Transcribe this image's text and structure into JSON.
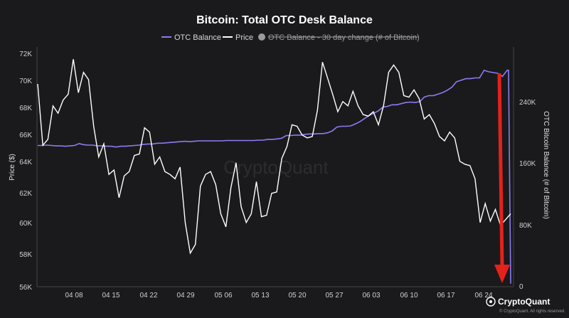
{
  "chart_data": {
    "type": "line",
    "title": "Bitcoin: Total OTC Desk Balance",
    "ylabel_left": "Price ($)",
    "ylabel_right": "OTC Bitcoin Balance (# of Bitcoin)",
    "ylim_left": [
      56000,
      73000
    ],
    "ylim_right": [
      0,
      300000
    ],
    "yticks_left": [
      "72K",
      "70K",
      "68K",
      "66K",
      "64K",
      "62K",
      "60K",
      "58K",
      "56K"
    ],
    "yticks_right": [
      "240K",
      "160K",
      "80K",
      "0"
    ],
    "xticks": [
      "04 08",
      "04 15",
      "04 22",
      "04 29",
      "05 06",
      "05 13",
      "05 20",
      "05 27",
      "06 03",
      "06 10",
      "06 17",
      "06 24"
    ],
    "legend": [
      {
        "name": "OTC Balance",
        "color": "#8b7cf2",
        "hidden": false
      },
      {
        "name": "Price",
        "color": "#ffffff",
        "hidden": false
      },
      {
        "name": "OTC Balance - 30 day change (# of Bitcoin)",
        "color": "#9a9aa3",
        "hidden": true
      }
    ],
    "watermark": "CryptoQuant",
    "series": [
      {
        "name": "Price",
        "axis": "left",
        "values": [
          69900,
          65700,
          66100,
          68400,
          67900,
          68800,
          69200,
          71600,
          69300,
          70700,
          70200,
          67000,
          64900,
          65800,
          63700,
          64000,
          62100,
          63600,
          63900,
          65000,
          65100,
          66900,
          66600,
          64400,
          64900,
          63900,
          63700,
          63400,
          64200,
          60400,
          58300,
          58900,
          62900,
          63700,
          63900,
          63000,
          61000,
          60100,
          62800,
          64500,
          61500,
          60400,
          61000,
          63200,
          60800,
          60900,
          62400,
          62500,
          64800,
          65600,
          67100,
          67000,
          66400,
          66200,
          66300,
          68100,
          71400,
          70300,
          69200,
          68000,
          68700,
          68400,
          69400,
          68400,
          67800,
          67700,
          68000,
          67100,
          68400,
          70700,
          71200,
          70700,
          69100,
          69000,
          69500,
          68900,
          67500,
          67800,
          67200,
          66300,
          66000,
          66600,
          66200,
          64600,
          64400,
          64300,
          63400,
          60400,
          61700,
          60500,
          61300,
          60200,
          60600,
          61000
        ],
        "color": "#ffffff"
      },
      {
        "name": "OTC Balance",
        "axis": "right",
        "values": [
          183000,
          183000,
          183500,
          183000,
          182500,
          182500,
          182000,
          182500,
          183000,
          185500,
          184000,
          183500,
          183500,
          182500,
          182500,
          182000,
          182000,
          181000,
          182000,
          182000,
          182500,
          183000,
          183500,
          184500,
          185000,
          185000,
          186000,
          186000,
          186500,
          187000,
          187500,
          188000,
          188500,
          188000,
          188500,
          189000,
          189000,
          189000,
          189000,
          189000,
          189000,
          189500,
          189500,
          189500,
          189500,
          189500,
          189500,
          189500,
          190000,
          190000,
          191000,
          191000,
          191500,
          192500,
          196000,
          196000,
          196500,
          196500,
          197500,
          198000,
          198000,
          198500,
          198500,
          199500,
          202000,
          207000,
          208000,
          208000,
          208500,
          211000,
          214000,
          218000,
          222000,
          225000,
          228000,
          233000,
          234000,
          236000,
          236000,
          237500,
          239000,
          239500,
          239000,
          240000,
          246000,
          248000,
          248000,
          250000,
          252000,
          255000,
          259000,
          266000,
          268000,
          270000,
          270000,
          271000,
          271000,
          281000,
          279000,
          278000,
          277000,
          273000,
          281000
        ],
        "tail": [
          281000,
          3000
        ],
        "color": "#8b7cf2"
      }
    ],
    "annotation": {
      "type": "arrow",
      "color": "#e5211d",
      "direction": "down"
    },
    "brand": "CryptoQuant",
    "copyright": "© CryptoQuant. All rights reserved."
  }
}
